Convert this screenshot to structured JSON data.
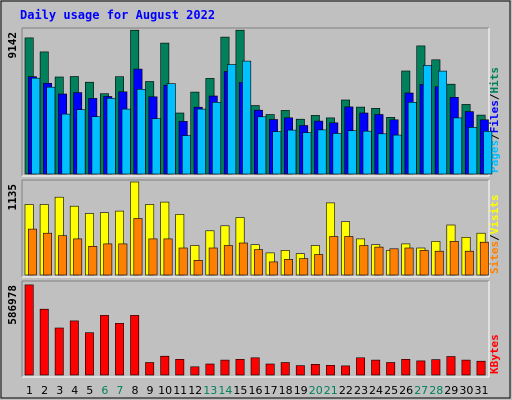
{
  "chart_data": {
    "type": "bar",
    "title": "Daily usage for August 2022",
    "categories": [
      "1",
      "2",
      "3",
      "4",
      "5",
      "6",
      "7",
      "8",
      "9",
      "10",
      "11",
      "12",
      "13",
      "14",
      "15",
      "16",
      "17",
      "18",
      "19",
      "20",
      "21",
      "22",
      "23",
      "24",
      "25",
      "26",
      "27",
      "28",
      "29",
      "30",
      "31"
    ],
    "weekend_days": [
      "6",
      "7",
      "13",
      "14",
      "20",
      "21",
      "27",
      "28"
    ],
    "colors": {
      "title": "#0000ff",
      "hits": "#00805c",
      "files": "#0000ff",
      "pages": "#00c0ff",
      "visits": "#ffff00",
      "sites": "#ff8000",
      "kbytes": "#ff0000",
      "weekend_label": "#00805c",
      "weekday_label": "#000000",
      "panel_bg": "#c0c0c0"
    },
    "panels": [
      {
        "name": "hits-files-pages",
        "max_label": "9142",
        "ylim": [
          0,
          9142
        ],
        "legend": [
          {
            "text": "Pages",
            "color": "#00c0ff"
          },
          {
            "text": "/",
            "color": "#000000"
          },
          {
            "text": "Files",
            "color": "#0000ff"
          },
          {
            "text": "/",
            "color": "#000000"
          },
          {
            "text": "Hits",
            "color": "#00805c"
          }
        ],
        "series": [
          {
            "name": "Hits",
            "values": [
              8640,
              7750,
              6160,
              6190,
              5830,
              5100,
              6180,
              9130,
              5870,
              8310,
              3870,
              5200,
              6070,
              8690,
              9130,
              4350,
              3780,
              4040,
              3480,
              3720,
              3560,
              4700,
              4250,
              4170,
              3600,
              6540,
              8130,
              7250,
              5700,
              4420,
              3740
            ]
          },
          {
            "name": "Files",
            "values": [
              6180,
              5760,
              5080,
              5170,
              4800,
              4920,
              5220,
              6660,
              4900,
              5640,
              3340,
              4240,
              4950,
              6510,
              5810,
              4050,
              3460,
              3570,
              3080,
              3360,
              3250,
              4260,
              3870,
              3780,
              3440,
              5140,
              5690,
              5540,
              4870,
              3960,
              3440
            ]
          },
          {
            "name": "Pages",
            "values": [
              6080,
              5510,
              3800,
              4080,
              3640,
              4800,
              4120,
              5380,
              3520,
              5730,
              2440,
              4120,
              4550,
              6950,
              7170,
              3630,
              2690,
              2790,
              2630,
              2800,
              2570,
              2750,
              2720,
              2550,
              2470,
              4550,
              6890,
              6530,
              3560,
              2960,
              2710
            ]
          }
        ]
      },
      {
        "name": "visits-sites",
        "max_label": "1135",
        "ylim": [
          0,
          1135
        ],
        "legend": [
          {
            "text": "Sites",
            "color": "#ff8000"
          },
          {
            "text": "/",
            "color": "#000000"
          },
          {
            "text": "Visits",
            "color": "#ffff00"
          }
        ],
        "series": [
          {
            "name": "Visits",
            "values": [
              860,
              860,
              950,
              840,
              750,
              760,
              780,
              1135,
              860,
              890,
              740,
              360,
              540,
              600,
              700,
              370,
              270,
              300,
              260,
              360,
              880,
              650,
              440,
              370,
              300,
              380,
              330,
              410,
              610,
              460,
              510
            ]
          },
          {
            "name": "Sites",
            "values": [
              560,
              510,
              480,
              440,
              350,
              380,
              380,
              690,
              440,
              440,
              330,
              180,
              330,
              360,
              390,
              310,
              160,
              190,
              200,
              250,
              470,
              470,
              360,
              340,
              320,
              330,
              300,
              290,
              410,
              290,
              400
            ]
          }
        ]
      },
      {
        "name": "kbytes",
        "max_label": "586978",
        "ylim": [
          0,
          586978
        ],
        "legend": [
          {
            "text": "KBytes",
            "color": "#ff0000"
          }
        ],
        "series": [
          {
            "name": "KBytes",
            "values": [
              575000,
              420000,
              300000,
              345000,
              270000,
              380000,
              330000,
              380000,
              80000,
              120000,
              100000,
              52000,
              70000,
              95000,
              100000,
              110000,
              70000,
              80000,
              60000,
              68000,
              62000,
              58000,
              110000,
              95000,
              80000,
              100000,
              90000,
              98000,
              118000,
              95000,
              88000
            ]
          }
        ]
      }
    ],
    "grid": false,
    "legend_position": "right-vertical"
  }
}
